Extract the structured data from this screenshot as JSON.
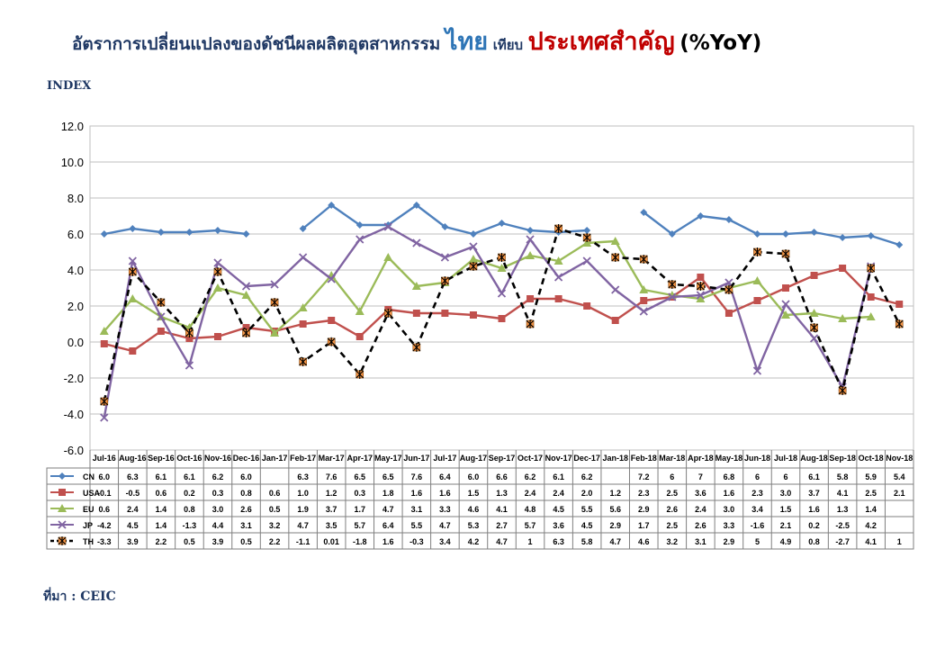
{
  "header": {
    "title_part1": "อัตราการเปลี่ยนแปลงของดัชนีผลผลิตอุตสาหกรรม",
    "title_thai": "ไทย",
    "title_compare": "เทียบ",
    "title_countries": "ประเทศสำคัญ",
    "title_unit": "(%YoY)"
  },
  "y_axis_title": "INDEX",
  "source": "ที่มา : CEIC",
  "chart_data": {
    "type": "line",
    "ylim": [
      -6,
      12
    ],
    "yticks": [
      "12.0",
      "10.0",
      "8.0",
      "6.0",
      "4.0",
      "2.0",
      "0.0",
      "-2.0",
      "-4.0",
      "-6.0"
    ],
    "grid": true,
    "legend": "data-table-left",
    "categories": [
      "Jul-16",
      "Aug-16",
      "Sep-16",
      "Oct-16",
      "Nov-16",
      "Dec-16",
      "Jan-17",
      "Feb-17",
      "Mar-17",
      "Apr-17",
      "May-17",
      "Jun-17",
      "Jul-17",
      "Aug-17",
      "Sep-17",
      "Oct-17",
      "Nov-17",
      "Dec-17",
      "Jan-18",
      "Feb-18",
      "Mar-18",
      "Apr-18",
      "May-18",
      "Jun-18",
      "Jul-18",
      "Aug-18",
      "Sep-18",
      "Oct-18",
      "Nov-18"
    ],
    "series": [
      {
        "name": "CN",
        "color": "#4f81bd",
        "marker": "diamond",
        "values": [
          6.0,
          6.3,
          6.1,
          6.1,
          6.2,
          6.0,
          null,
          6.3,
          7.6,
          6.5,
          6.5,
          7.6,
          6.4,
          6.0,
          6.6,
          6.2,
          6.1,
          6.2,
          null,
          7.2,
          6,
          7,
          6.8,
          6,
          6,
          6.1,
          5.8,
          5.9,
          5.4
        ],
        "labels": [
          "6.0",
          "6.3",
          "6.1",
          "6.1",
          "6.2",
          "6.0",
          "",
          "6.3",
          "7.6",
          "6.5",
          "6.5",
          "7.6",
          "6.4",
          "6.0",
          "6.6",
          "6.2",
          "6.1",
          "6.2",
          "",
          "7.2",
          "6",
          "7",
          "6.8",
          "6",
          "6",
          "6.1",
          "5.8",
          "5.9",
          "5.4"
        ]
      },
      {
        "name": "USA",
        "color": "#c0504d",
        "marker": "square",
        "values": [
          -0.1,
          -0.5,
          0.6,
          0.2,
          0.3,
          0.8,
          0.6,
          1.0,
          1.2,
          0.3,
          1.8,
          1.6,
          1.6,
          1.5,
          1.3,
          2.4,
          2.4,
          2.0,
          1.2,
          2.3,
          2.5,
          3.6,
          1.6,
          2.3,
          3.0,
          3.7,
          4.1,
          2.5,
          2.1
        ],
        "labels": [
          "-0.1",
          "-0.5",
          "0.6",
          "0.2",
          "0.3",
          "0.8",
          "0.6",
          "1.0",
          "1.2",
          "0.3",
          "1.8",
          "1.6",
          "1.6",
          "1.5",
          "1.3",
          "2.4",
          "2.4",
          "2.0",
          "1.2",
          "2.3",
          "2.5",
          "3.6",
          "1.6",
          "2.3",
          "3.0",
          "3.7",
          "4.1",
          "2.5",
          "2.1"
        ]
      },
      {
        "name": "EU",
        "color": "#9bbb59",
        "marker": "triangle",
        "values": [
          0.6,
          2.4,
          1.4,
          0.8,
          3.0,
          2.6,
          0.5,
          1.9,
          3.7,
          1.7,
          4.7,
          3.1,
          3.3,
          4.6,
          4.1,
          4.8,
          4.5,
          5.5,
          5.6,
          2.9,
          2.6,
          2.4,
          3.0,
          3.4,
          1.5,
          1.6,
          1.3,
          1.4,
          null
        ],
        "labels": [
          "0.6",
          "2.4",
          "1.4",
          "0.8",
          "3.0",
          "2.6",
          "0.5",
          "1.9",
          "3.7",
          "1.7",
          "4.7",
          "3.1",
          "3.3",
          "4.6",
          "4.1",
          "4.8",
          "4.5",
          "5.5",
          "5.6",
          "2.9",
          "2.6",
          "2.4",
          "3.0",
          "3.4",
          "1.5",
          "1.6",
          "1.3",
          "1.4",
          ""
        ]
      },
      {
        "name": "JP",
        "color": "#8064a2",
        "marker": "x",
        "values": [
          -4.2,
          4.5,
          1.4,
          -1.3,
          4.4,
          3.1,
          3.2,
          4.7,
          3.5,
          5.7,
          6.4,
          5.5,
          4.7,
          5.3,
          2.7,
          5.7,
          3.6,
          4.5,
          2.9,
          1.7,
          2.5,
          2.6,
          3.3,
          -1.6,
          2.1,
          0.2,
          -2.5,
          4.2,
          null
        ],
        "labels": [
          "-4.2",
          "4.5",
          "1.4",
          "-1.3",
          "4.4",
          "3.1",
          "3.2",
          "4.7",
          "3.5",
          "5.7",
          "6.4",
          "5.5",
          "4.7",
          "5.3",
          "2.7",
          "5.7",
          "3.6",
          "4.5",
          "2.9",
          "1.7",
          "2.5",
          "2.6",
          "3.3",
          "-1.6",
          "2.1",
          "0.2",
          "-2.5",
          "4.2",
          ""
        ]
      },
      {
        "name": "TH",
        "color": "#000000",
        "marker": "star",
        "dashed": true,
        "values": [
          -3.3,
          3.9,
          2.2,
          0.5,
          3.9,
          0.5,
          2.2,
          -1.1,
          0.01,
          -1.8,
          1.6,
          -0.3,
          3.4,
          4.2,
          4.7,
          1,
          6.3,
          5.8,
          4.7,
          4.6,
          3.2,
          3.1,
          2.9,
          5,
          4.9,
          0.8,
          -2.7,
          4.1,
          1
        ],
        "labels": [
          "-3.3",
          "3.9",
          "2.2",
          "0.5",
          "3.9",
          "0.5",
          "2.2",
          "-1.1",
          "0.01",
          "-1.8",
          "1.6",
          "-0.3",
          "3.4",
          "4.2",
          "4.7",
          "1",
          "6.3",
          "5.8",
          "4.7",
          "4.6",
          "3.2",
          "3.1",
          "2.9",
          "5",
          "4.9",
          "0.8",
          "-2.7",
          "4.1",
          "1"
        ]
      }
    ]
  }
}
